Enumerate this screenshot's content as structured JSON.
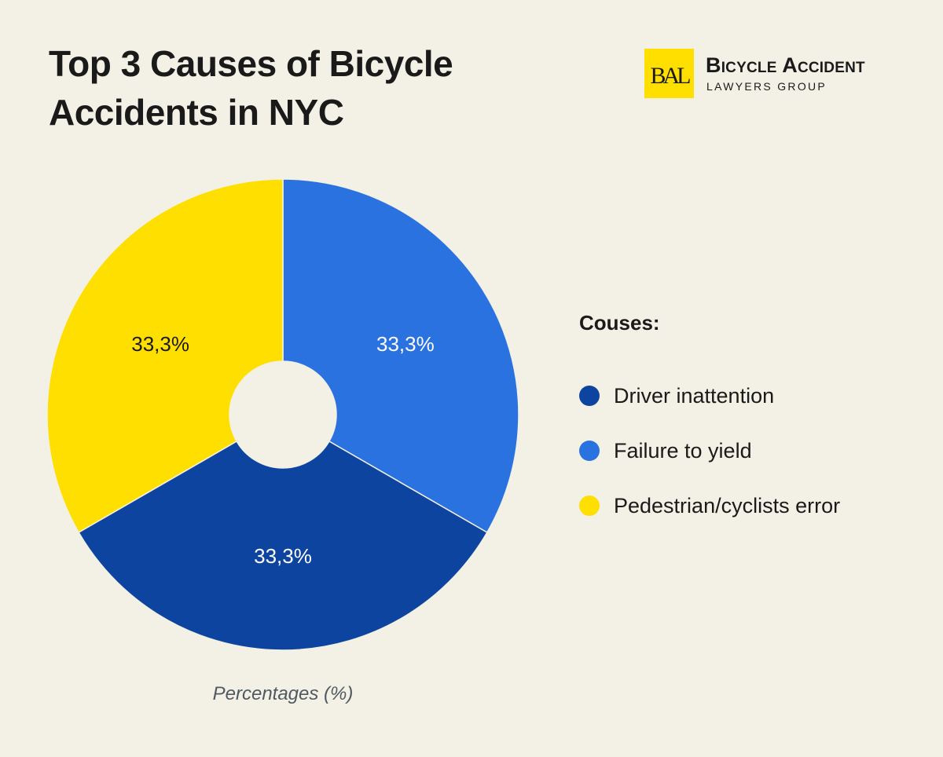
{
  "header": {
    "title": "Top 3 Causes of Bicycle Accidents in NYC"
  },
  "logo": {
    "name_line1": "Bicycle Accident",
    "name_line2": "LAWYERS GROUP",
    "mark_text": "BAL"
  },
  "legend": {
    "title": "Couses:",
    "items": [
      {
        "label": "Driver inattention",
        "color": "#0d449f"
      },
      {
        "label": "Failure to yield",
        "color": "#2a72e0"
      },
      {
        "label": "Pedestrian/cyclists error",
        "color": "#ffdf00"
      }
    ]
  },
  "chart_data": {
    "type": "pie",
    "title": "Top 3 Causes of Bicycle Accidents in NYC",
    "xlabel": "Percentages (%)",
    "ylabel": "",
    "legend_position": "right",
    "donut": true,
    "slices": [
      {
        "label": "Failure to yield",
        "value": 33.3,
        "display": "33,3%",
        "color": "#2a72e0",
        "text_color": "#ffffff"
      },
      {
        "label": "Driver inattention",
        "value": 33.3,
        "display": "33,3%",
        "color": "#0d449f",
        "text_color": "#ffffff"
      },
      {
        "label": "Pedestrian/cyclists error",
        "value": 33.3,
        "display": "33,3%",
        "color": "#ffdf00",
        "text_color": "#1a1a1a"
      }
    ]
  }
}
